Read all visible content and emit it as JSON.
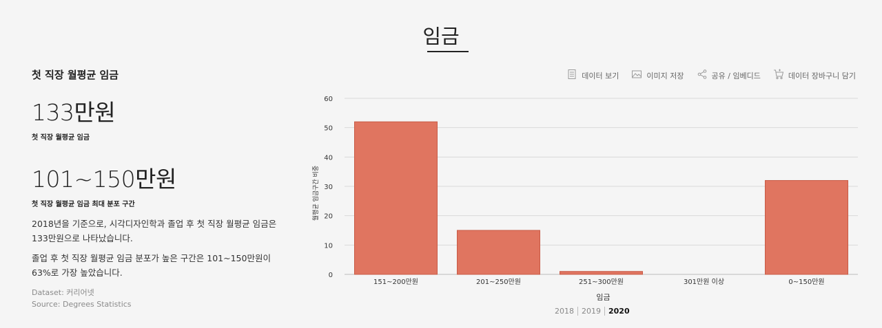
{
  "header": {
    "title": "임금"
  },
  "summary": {
    "section_title": "첫 직장 월평균 임금",
    "avg_value": "133만원",
    "avg_label": "첫 직장 월평균 임금",
    "range_value": "101~150만원",
    "range_label": "첫 직장 월평균 임금 최대 분포 구간",
    "desc1": "2018년을 기준으로, 시각디자인학과 졸업 후 첫 직장 월평균 임금은 133만원으로 나타났습니다.",
    "desc2": "졸업 후 첫 직장 월평균 임금 분포가 높은 구간은 101~150만원이 63%로 가장 높았습니다.",
    "dataset": "Dataset: 커리어넷",
    "source": "Source: Degrees Statistics"
  },
  "toolbar": {
    "items": [
      {
        "label": "데이터 보기",
        "icon": "document-icon"
      },
      {
        "label": "이미지 저장",
        "icon": "image-icon"
      },
      {
        "label": "공유 / 임베디드",
        "icon": "share-icon"
      },
      {
        "label": "데이터 장바구니 담기",
        "icon": "cart-icon"
      }
    ]
  },
  "chart_data": {
    "type": "bar",
    "categories": [
      "151~200만원",
      "201~250만원",
      "251~300만원",
      "301만원 이상",
      "0~150만원"
    ],
    "values": [
      52,
      15,
      1,
      0,
      32
    ],
    "xlabel": "임금",
    "ylabel": "월평균 임금구간 비중",
    "ylim": [
      0,
      60
    ],
    "yticks": [
      0,
      10,
      20,
      30,
      40,
      50,
      60
    ],
    "grid": true,
    "bar_color": "#e07560",
    "bar_stroke": "#c85a45"
  },
  "years": {
    "items": [
      "2018",
      "2019",
      "2020"
    ],
    "active": "2020"
  }
}
